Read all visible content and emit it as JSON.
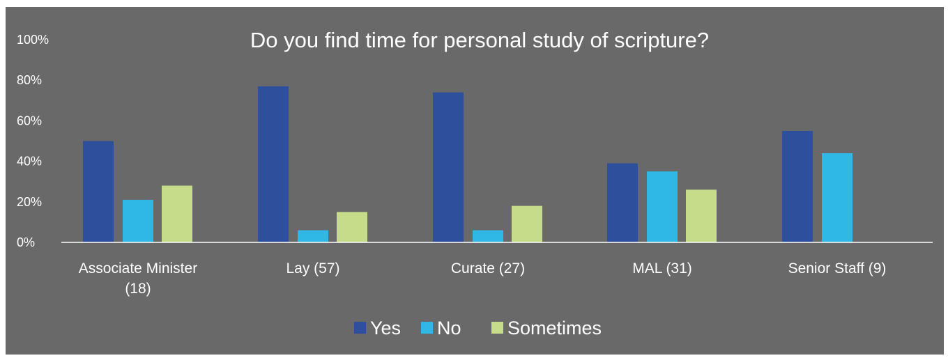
{
  "chart_data": {
    "type": "bar",
    "title": "Do you find time for personal study of scripture?",
    "xlabel": "",
    "ylabel": "",
    "ylim": [
      0,
      100
    ],
    "yticks": [
      "0%",
      "20%",
      "40%",
      "60%",
      "80%",
      "100%"
    ],
    "categories": [
      [
        "Associate Minister",
        "(18)"
      ],
      [
        "Lay (57)"
      ],
      [
        "Curate (27)"
      ],
      [
        "MAL (31)"
      ],
      [
        "Senior Staff (9)"
      ]
    ],
    "series": [
      {
        "name": "Yes",
        "color": "#2e4f9c",
        "values": [
          50,
          77,
          74,
          39,
          55
        ]
      },
      {
        "name": "No",
        "color": "#2fb8e6",
        "values": [
          21,
          6,
          6,
          35,
          44
        ]
      },
      {
        "name": "Sometimes",
        "color": "#c6dc8a",
        "values": [
          28,
          15,
          18,
          26,
          0
        ]
      }
    ],
    "grid": false,
    "legend_position": "bottom",
    "background_color": "#696969"
  }
}
